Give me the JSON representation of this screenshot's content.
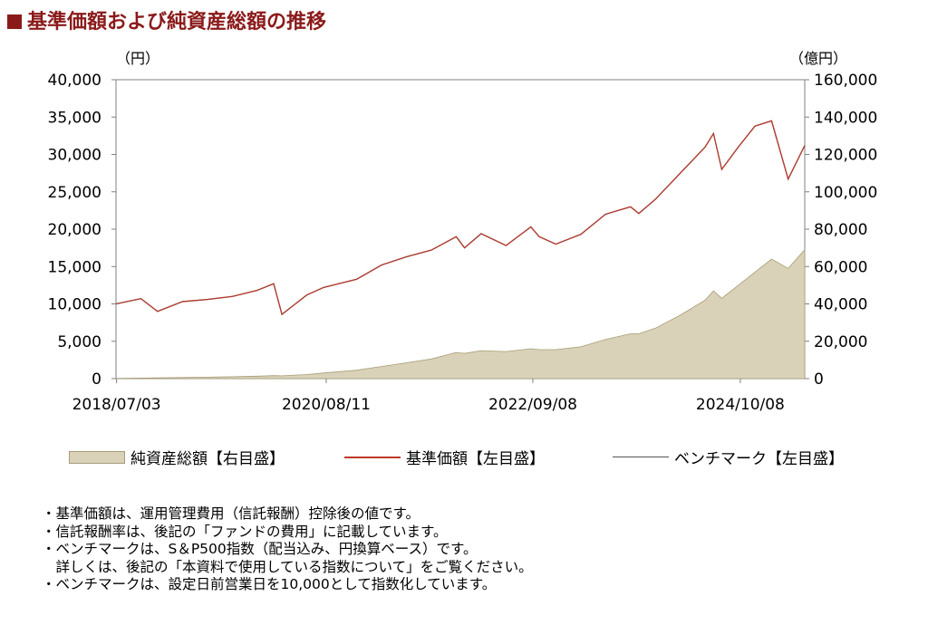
{
  "title": "基準価額および純資産総額の推移",
  "left_unit": "（円）",
  "right_unit": "（億円）",
  "legend": [
    {
      "label": "純資産総額【右目盛】"
    },
    {
      "label": "基準価額【左目盛】"
    },
    {
      "label": "ベンチマーク【左目盛】"
    }
  ],
  "notes": [
    "・基準価額は、運用管理費用（信託報酬）控除後の値です。",
    "・信託報酬率は、後記の「ファンドの費用」に記載しています。",
    "・ベンチマークは、S＆P500指数（配当込み、円換算ベース）です。",
    "　詳しくは、後記の「本資料で使用している指数について」をご覧ください。",
    "・ベンチマークは、設定日前営業日を10,000として指数化しています。"
  ],
  "colors": {
    "title": "#8b1a1a",
    "nav_line": "#c0392b",
    "benchmark_line": "#555555",
    "area_fill": "#d9d2b8",
    "area_stroke": "#a89c78"
  },
  "chart_data": {
    "type": "line",
    "x_tick_labels": [
      "2018/07/03",
      "2020/08/11",
      "2022/09/08",
      "2024/10/08"
    ],
    "left_y_tick_labels": [
      "40,000",
      "35,000",
      "30,000",
      "25,000",
      "20,000",
      "15,000",
      "10,000",
      "5,000",
      "0"
    ],
    "right_y_tick_labels": [
      "160,000",
      "140,000",
      "120,000",
      "100,000",
      "80,000",
      "60,000",
      "40,000",
      "20,000",
      "0"
    ],
    "ylim_left": [
      0,
      40000
    ],
    "ylim_right": [
      0,
      160000
    ],
    "x": [
      "2018/07",
      "2018/10",
      "2018/12",
      "2019/03",
      "2019/06",
      "2019/09",
      "2019/12",
      "2020/02",
      "2020/03",
      "2020/06",
      "2020/08",
      "2020/12",
      "2021/03",
      "2021/06",
      "2021/09",
      "2021/12",
      "2022/01",
      "2022/03",
      "2022/06",
      "2022/09",
      "2022/10",
      "2022/12",
      "2023/03",
      "2023/06",
      "2023/09",
      "2023/10",
      "2023/12",
      "2024/03",
      "2024/06",
      "2024/07",
      "2024/08",
      "2024/10",
      "2024/12",
      "2025/02",
      "2025/04",
      "2025/06"
    ],
    "series": [
      {
        "name": "基準価額【左目盛】",
        "axis": "left",
        "values": [
          10000,
          10700,
          9000,
          10300,
          10600,
          11000,
          11800,
          12700,
          8600,
          11200,
          12200,
          13300,
          15200,
          16300,
          17200,
          19000,
          17500,
          19400,
          17800,
          20300,
          19000,
          18000,
          19300,
          22000,
          23000,
          22100,
          24000,
          27500,
          31000,
          32800,
          28000,
          31000,
          33800,
          34500,
          26700,
          31200
        ]
      },
      {
        "name": "ベンチマーク【左目盛】",
        "axis": "left",
        "values": [
          10000,
          10700,
          9000,
          10300,
          10600,
          11000,
          11800,
          12700,
          8600,
          11200,
          12200,
          13300,
          15200,
          16300,
          17200,
          19000,
          17500,
          19400,
          17800,
          20300,
          19000,
          18000,
          19300,
          22000,
          23000,
          22100,
          24000,
          27500,
          31000,
          32800,
          28000,
          31000,
          33800,
          34500,
          26700,
          31200
        ]
      },
      {
        "name": "純資産総額【右目盛】",
        "axis": "right",
        "type": "area",
        "values": [
          100,
          300,
          400,
          600,
          800,
          1000,
          1300,
          1600,
          1500,
          2200,
          3000,
          4500,
          6500,
          8500,
          10500,
          14000,
          13500,
          15000,
          14500,
          16000,
          15500,
          15500,
          17000,
          21000,
          24000,
          24000,
          27000,
          34000,
          42000,
          47000,
          43000,
          50000,
          57000,
          64000,
          59000,
          69000
        ]
      }
    ]
  }
}
